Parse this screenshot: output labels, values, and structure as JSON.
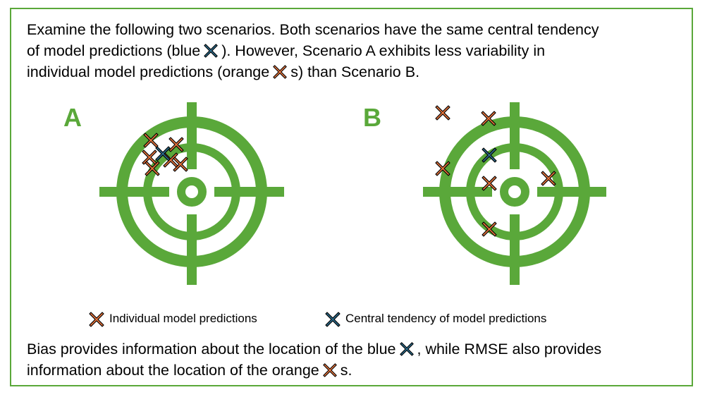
{
  "intro": {
    "line1": "Examine the following two scenarios. Both scenarios have the same central tendency",
    "line2_pre": "of model predictions (blue",
    "line2_post": "). However, Scenario A exhibits less variability in",
    "line3_pre": "individual model predictions (orange",
    "line3_post": "s) than Scenario B."
  },
  "panels": {
    "a_label": "A",
    "b_label": "B"
  },
  "legend": {
    "individual": "Individual model predictions",
    "central": "Central tendency of model predictions"
  },
  "outro": {
    "line1_pre": "Bias provides information about the location of the blue",
    "line1_post": ", while RMSE also provides",
    "line2_pre": "information about the location of the orange",
    "line2_post": "s."
  },
  "colors": {
    "target_green": "#5aa83a",
    "orange_marker": "#e8743b",
    "blue_marker": "#2a6a8a",
    "outline": "#000000"
  },
  "icons": {
    "orange_marker": "orange-x-marker-icon",
    "blue_marker": "blue-x-marker-icon",
    "target": "crosshair-target-icon"
  }
}
